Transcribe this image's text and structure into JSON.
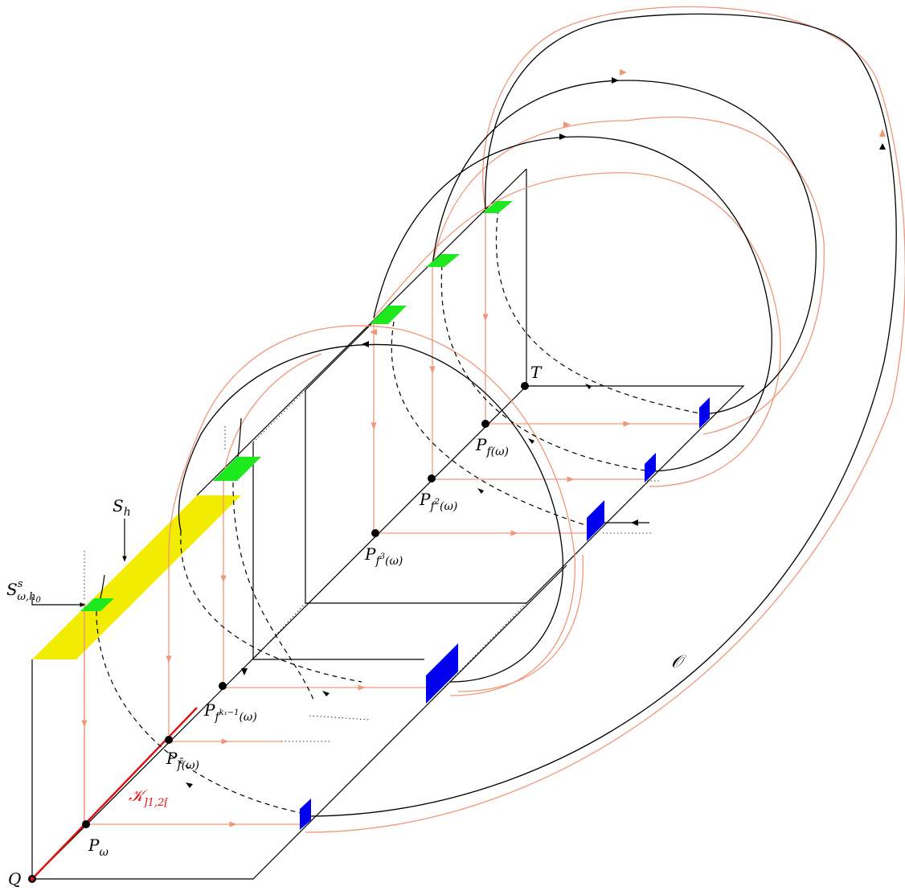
{
  "labels": {
    "Q": "Q",
    "T": "T",
    "S_h": "S",
    "S_h_sub": "h",
    "S_omega": "S",
    "S_omega_sup": "s",
    "S_omega_sub": "ω,h",
    "S_omega_sub2": "0",
    "P_omega": "P",
    "P_omega_sub": "ω",
    "P_fbar": "P",
    "P_fbar_sub": "f̄(ω)",
    "P_fk": "P",
    "P_fk_sub": "f",
    "P_fk_sup": "k₁−1",
    "P_fk_tail": "(ω)",
    "P_f1": "P",
    "P_f1_sub": "f(ω)",
    "P_f2": "P",
    "P_f2_sub": "f",
    "P_f2_sup": "2",
    "P_f2_tail": "(ω)",
    "P_f3": "P",
    "P_f3_sub": "f",
    "P_f3_sup": "3",
    "P_f3_tail": "(ω)",
    "K": "𝒦",
    "K_sub": "]1,2[",
    "O": "𝒪"
  },
  "colors": {
    "red_segment": "#e01010",
    "orbit_salmon": "#f0967a",
    "green_patch": "#1ee81e",
    "blue_patch": "#0000ee",
    "yellow_strip": "#f2ec00",
    "ink": "#000000"
  }
}
